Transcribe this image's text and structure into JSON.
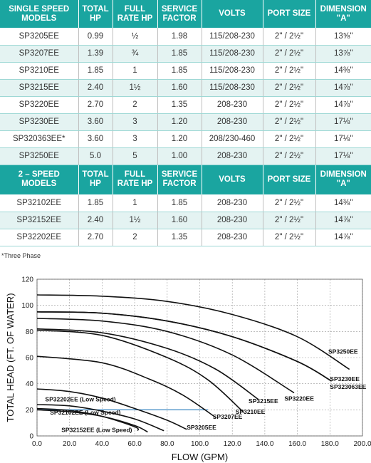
{
  "table": {
    "headers": [
      "SINGLE SPEED MODELS",
      "TOTAL HP",
      "FULL RATE HP",
      "SERVICE FACTOR",
      "VOLTS",
      "PORT SIZE",
      "DIMENSION \"A\""
    ],
    "rows": [
      [
        "SP3205EE",
        "0.99",
        "½",
        "1.98",
        "115/208-230",
        "2\" / 2½\"",
        "13⅝\""
      ],
      [
        "SP3207EE",
        "1.39",
        "¾",
        "1.85",
        "115/208-230",
        "2\" / 2½\"",
        "13⅞\""
      ],
      [
        "SP3210EE",
        "1.85",
        "1",
        "1.85",
        "115/208-230",
        "2\" / 2½\"",
        "14⅜\""
      ],
      [
        "SP3215EE",
        "2.40",
        "1½",
        "1.60",
        "115/208-230",
        "2\" / 2½\"",
        "14⅞\""
      ],
      [
        "SP3220EE",
        "2.70",
        "2",
        "1.35",
        "208-230",
        "2\" / 2½\"",
        "14⅞\""
      ],
      [
        "SP3230EE",
        "3.60",
        "3",
        "1.20",
        "208-230",
        "2\" / 2½\"",
        "17⅛\""
      ],
      [
        "SP320363EE*",
        "3.60",
        "3",
        "1.20",
        "208/230-460",
        "2\" / 2½\"",
        "17⅛\""
      ],
      [
        "SP3250EE",
        "5.0",
        "5",
        "1.00",
        "208-230",
        "2\" / 2½\"",
        "17⅛\""
      ]
    ],
    "headers2": [
      "2 – SPEED MODELS",
      "TOTAL HP",
      "FULL RATE HP",
      "SERVICE FACTOR",
      "VOLTS",
      "PORT SIZE",
      "DIMENSION \"A\""
    ],
    "rows2": [
      [
        "SP32102EE",
        "1.85",
        "1",
        "1.85",
        "208-230",
        "2\" / 2½\"",
        "14⅜\""
      ],
      [
        "SP32152EE",
        "2.40",
        "1½",
        "1.60",
        "208-230",
        "2\" / 2½\"",
        "14⅞\""
      ],
      [
        "SP32202EE",
        "2.70",
        "2",
        "1.35",
        "208-230",
        "2\" / 2½\"",
        "14⅞\""
      ]
    ],
    "footnote": "*Three Phase"
  },
  "colors": {
    "header_bg": "#1aa5a0",
    "alt_row": "#e4f3f2",
    "curve": "#111111",
    "highlight_line": "#4a90c8"
  },
  "chart_data": {
    "type": "line",
    "xlabel": "FLOW (GPM)",
    "ylabel": "TOTAL HEAD (FT. OF WATER)",
    "xlim": [
      0,
      200
    ],
    "ylim": [
      0,
      120
    ],
    "xticks": [
      "0.0",
      "20.0",
      "40.0",
      "60.0",
      "80.0",
      "100.0",
      "120.0",
      "140.0",
      "160.0",
      "180.0",
      "200.0"
    ],
    "yticks": [
      "0",
      "20",
      "40",
      "60",
      "80",
      "100",
      "120"
    ],
    "grid": "dashed",
    "series": [
      {
        "name": "SP3250EE",
        "x": [
          0,
          40,
          80,
          120,
          160,
          192
        ],
        "y": [
          108,
          107,
          103,
          93,
          76,
          51
        ]
      },
      {
        "name": "SP3230EE",
        "x": [
          0,
          40,
          80,
          120,
          160,
          181
        ],
        "y": [
          95,
          94,
          88,
          76,
          57,
          42
        ]
      },
      {
        "name": "SP323063EE",
        "x": [
          0,
          40,
          80,
          120,
          160,
          181
        ],
        "y": [
          95,
          94,
          88,
          76,
          57,
          42
        ]
      },
      {
        "name": "SP3220EE",
        "x": [
          0,
          40,
          80,
          120,
          158
        ],
        "y": [
          90,
          88,
          80,
          62,
          33
        ]
      },
      {
        "name": "SP3215EE",
        "x": [
          0,
          40,
          80,
          110,
          136
        ],
        "y": [
          82,
          79,
          67,
          51,
          28
        ]
      },
      {
        "name": "SP3210EE",
        "x": [
          0,
          40,
          80,
          105,
          127
        ],
        "y": [
          81,
          77,
          60,
          43,
          18
        ]
      },
      {
        "name": "SP3207EE",
        "x": [
          0,
          40,
          70,
          90,
          110
        ],
        "y": [
          61,
          56,
          43,
          31,
          14
        ]
      },
      {
        "name": "SP3205EE",
        "x": [
          0,
          20,
          40,
          60,
          80,
          92
        ],
        "y": [
          36,
          34,
          29,
          21,
          12,
          5
        ]
      },
      {
        "name": "SP32202EE (Low Speed)",
        "x": [
          0,
          20,
          40,
          60,
          78
        ],
        "y": [
          24,
          23,
          19,
          13,
          4
        ]
      },
      {
        "name": "SP32102EE (Low Speed)",
        "x": [
          0,
          20,
          40,
          60,
          68
        ],
        "y": [
          20,
          18.5,
          15,
          8,
          3
        ]
      },
      {
        "name": "SP32152EE (Low Speed)",
        "x": [
          0,
          20,
          40,
          60,
          62
        ],
        "y": [
          21,
          19.5,
          15,
          7,
          4
        ]
      }
    ],
    "highlight_line": {
      "x": [
        0,
        105
      ],
      "y": [
        20,
        20
      ]
    },
    "labels": [
      {
        "text": "SP3250EE",
        "x": 179,
        "y": 63
      },
      {
        "text": "SP3230EE",
        "x": 180,
        "y": 42
      },
      {
        "text": "SP323063EE",
        "x": 180,
        "y": 36
      },
      {
        "text": "SP3220EE",
        "x": 152,
        "y": 27
      },
      {
        "text": "SP3215EE",
        "x": 130,
        "y": 25
      },
      {
        "text": "SP3210EE",
        "x": 122,
        "y": 17
      },
      {
        "text": "SP3207EE",
        "x": 108,
        "y": 13
      },
      {
        "text": "SP3205EE",
        "x": 92,
        "y": 5
      },
      {
        "text": "SP32202EE (Low Speed)",
        "x": 5,
        "y": 26.5
      },
      {
        "text": "SP32102EE (Low Speed)",
        "x": 8,
        "y": 16.5
      },
      {
        "text": "SP32152EE (Low Speed)",
        "x": 15,
        "y": 3
      }
    ]
  }
}
